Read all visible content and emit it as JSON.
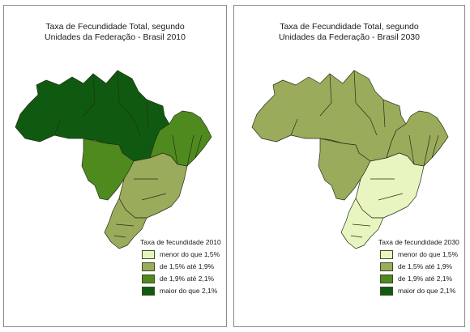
{
  "maps": [
    {
      "title_line1": "Taxa de Fecundidade Total, segundo",
      "title_line2": "Unidades da Federação - Brasil 2010",
      "legend_title": "Taxa de fecundidade 2010",
      "region_classes": {
        "north": "maior do que 2,1%",
        "northeast_outer": "de 1,9% até 2,1%",
        "midwest": "de 1,9% até 2,1%",
        "southeast": "de 1,5% até 1,9%",
        "south": "de 1,5% até 1,9%"
      }
    },
    {
      "title_line1": "Taxa de Fecundidade Total, segundo",
      "title_line2": "Unidades da Federação - Brasil 2030",
      "legend_title": "Taxa de fecundidade 2030",
      "region_classes": {
        "north": "de 1,5% até 1,9%",
        "northeast_outer": "de 1,5% até 1,9%",
        "midwest": "de 1,5% até 1,9%",
        "southeast": "menor do que 1,5%",
        "south": "menor do que 1,5%"
      }
    }
  ],
  "legend": [
    {
      "label": "menor do que 1,5%",
      "color": "#e8f5c0"
    },
    {
      "label": "de 1,5% até 1,9%",
      "color": "#9aab5c"
    },
    {
      "label": "de 1,9% até 2,1%",
      "color": "#4f8a1e"
    },
    {
      "label": "maior do que 2,1%",
      "color": "#0f5a10"
    }
  ],
  "border_color": "#243016"
}
